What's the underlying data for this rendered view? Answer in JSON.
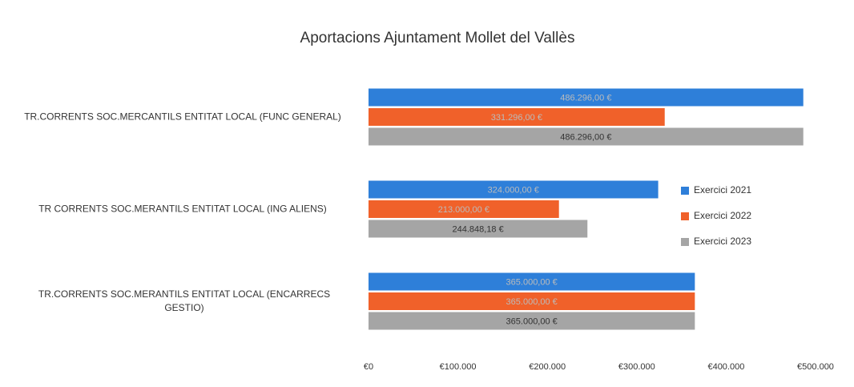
{
  "chart_data": {
    "type": "barh",
    "title": "Aportacions Ajuntament Mollet del Vallès",
    "categories": [
      "TR.CORRENTS SOC.MERCANTILS ENTITAT LOCAL (FUNC GENERAL)",
      "TR CORRENTS SOC.MERANTILS ENTITAT LOCAL (ING ALIENS)",
      "TR.CORRENTS SOC.MERANTILS ENTITAT LOCAL (ENCARRECS GESTIO)"
    ],
    "series": [
      {
        "name": "Exercici 2021",
        "color": "#2e7fd9",
        "values": [
          486296,
          324000,
          365000
        ],
        "value_labels": [
          "486.296,00 €",
          "324.000,00 €",
          "365.000,00 €"
        ]
      },
      {
        "name": "Exercici 2022",
        "color": "#f0612a",
        "values": [
          331296,
          213000,
          365000
        ],
        "value_labels": [
          "331.296,00 €",
          "213.000,00 €",
          "365.000,00 €"
        ]
      },
      {
        "name": "Exercici 2023",
        "color": "#a5a5a5",
        "values": [
          486296,
          244848.18,
          365000
        ],
        "value_labels": [
          "486.296,00 €",
          "244.848,18 €",
          "365.000,00 €"
        ]
      }
    ],
    "xlim": [
      0,
      500000
    ],
    "xticks": [
      {
        "value": 0,
        "label": "€0"
      },
      {
        "value": 100000,
        "label": "€100.000"
      },
      {
        "value": 200000,
        "label": "€200.000"
      },
      {
        "value": 300000,
        "label": "€300.000"
      },
      {
        "value": 400000,
        "label": "€400.000"
      },
      {
        "value": 500000,
        "label": "€500.000"
      }
    ],
    "legend": "right"
  }
}
